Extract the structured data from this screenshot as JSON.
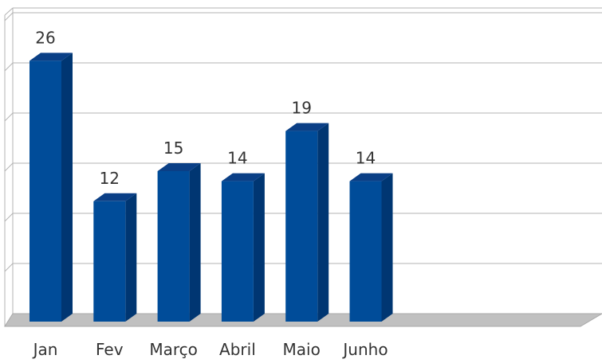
{
  "chart_data": {
    "type": "bar",
    "categories": [
      "Jan",
      "Fev",
      "Março",
      "Abril",
      "Maio",
      "Junho"
    ],
    "values": [
      26,
      12,
      15,
      14,
      19,
      14
    ],
    "title": "",
    "xlabel": "",
    "ylabel": "",
    "ylim": [
      0,
      30
    ],
    "grid": true,
    "legend": "none",
    "style": "3d-column",
    "colors": {
      "bar_front": "#004C99",
      "bar_side": "#003672",
      "bar_top": "#0a3f86",
      "floor": "#c0c0c0",
      "grid": "#b3b3b3",
      "label": "#333333"
    }
  }
}
